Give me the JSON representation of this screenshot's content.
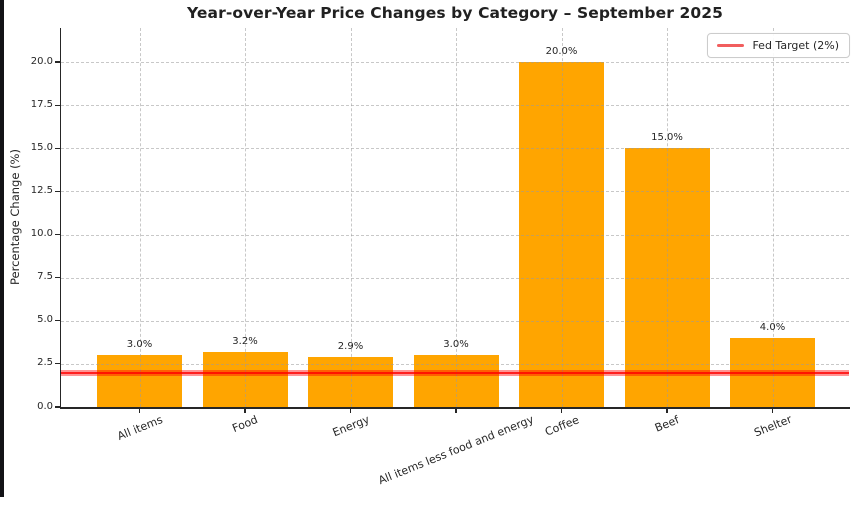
{
  "window": {
    "background": "#ffffff",
    "edge_color": "#121216"
  },
  "chart_data": {
    "type": "bar",
    "title": "Year-over-Year Price Changes by Category – September 2025",
    "categories": [
      "All items",
      "Food",
      "Energy",
      "All items less food and energy",
      "Coffee",
      "Beef",
      "Shelter"
    ],
    "values": [
      3.0,
      3.2,
      2.9,
      3.0,
      20.0,
      15.0,
      4.0
    ],
    "bar_value_labels": [
      "3.0%",
      "3.2%",
      "2.9%",
      "3.0%",
      "20.0%",
      "15.0%",
      "4.0%"
    ],
    "xlabel": "",
    "ylabel": "Percentage Change (%)",
    "ytick_values": [
      0,
      2.5,
      5,
      7.5,
      10,
      12.5,
      15,
      17.5,
      20
    ],
    "ytick_labels": [
      "0.0",
      "2.5",
      "5.0",
      "7.5",
      "10.0",
      "12.5",
      "15.0",
      "17.5",
      "20.0"
    ],
    "ylim": [
      0,
      21.9
    ],
    "grid": {
      "visible": true,
      "style": "dashed",
      "axes": "both"
    },
    "reference_line": {
      "value": 2,
      "label": "Fed Target (2%)"
    },
    "legend": {
      "label": "Fed Target (2%)",
      "position": "upper right"
    },
    "colors": {
      "bar": "#ffa500",
      "ref_line": "#ff0000",
      "legend_key": "#f15e5e",
      "grid": "#9b9b9b",
      "text": "#262626",
      "spine": "#262626"
    }
  }
}
